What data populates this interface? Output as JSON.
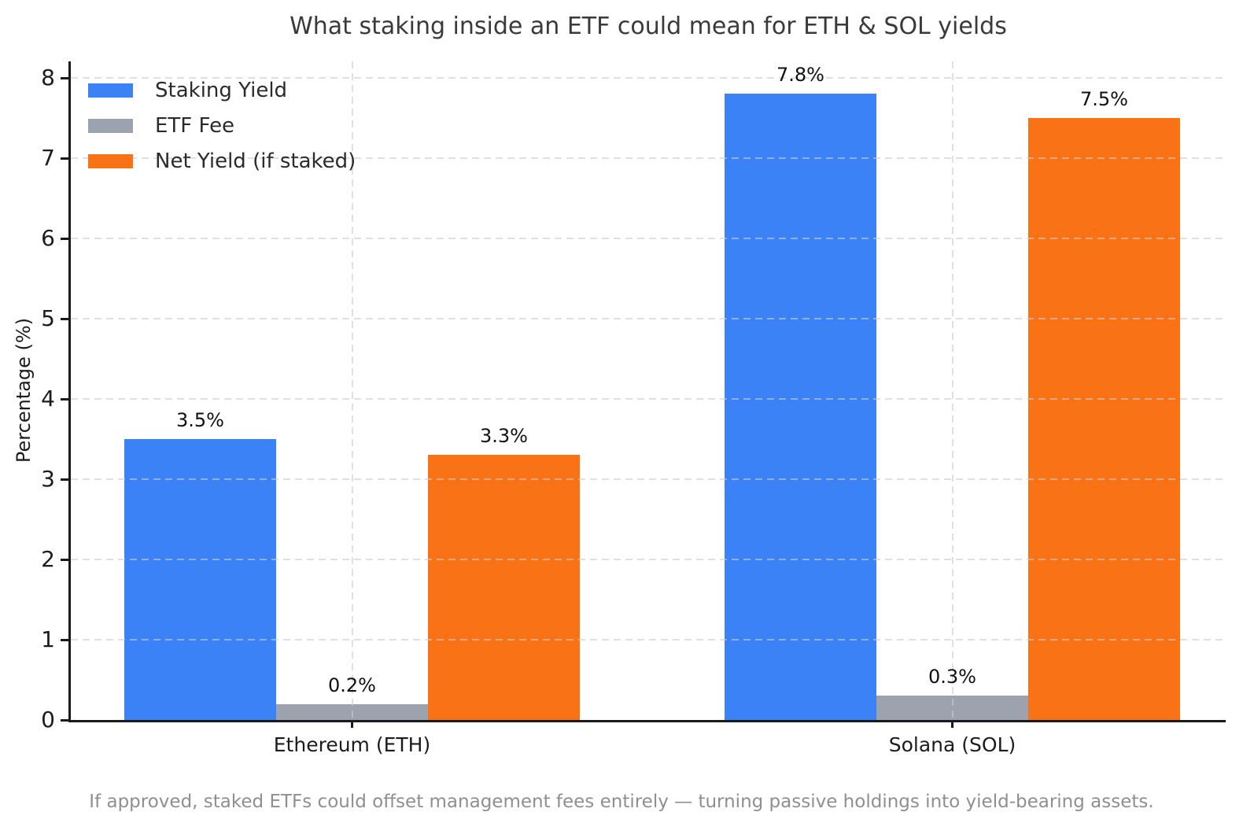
{
  "caption": "If approved, staked ETFs could offset management fees entirely — turning passive holdings into yield-bearing assets.",
  "chart_data": {
    "type": "bar",
    "title": "What staking inside an ETF could mean for ETH & SOL yields",
    "ylabel": "Percentage (%)",
    "xlabel": "",
    "categories": [
      "Ethereum (ETH)",
      "Solana (SOL)"
    ],
    "series": [
      {
        "name": "Staking Yield",
        "color": "#3b82f6",
        "values": [
          3.5,
          7.8
        ],
        "labels": [
          "3.5%",
          "7.8%"
        ]
      },
      {
        "name": "ETF Fee",
        "color": "#9ca3af",
        "values": [
          0.2,
          0.3
        ],
        "labels": [
          "0.2%",
          "0.3%"
        ]
      },
      {
        "name": "Net Yield (if staked)",
        "color": "#f97316",
        "values": [
          3.3,
          7.5
        ],
        "labels": [
          "3.3%",
          "7.5%"
        ]
      }
    ],
    "yticks": [
      0,
      1,
      2,
      3,
      4,
      5,
      6,
      7,
      8
    ],
    "ylim": [
      0,
      8.2
    ],
    "grid": true,
    "grid_style": "dashed",
    "legend_position": "upper-left"
  }
}
